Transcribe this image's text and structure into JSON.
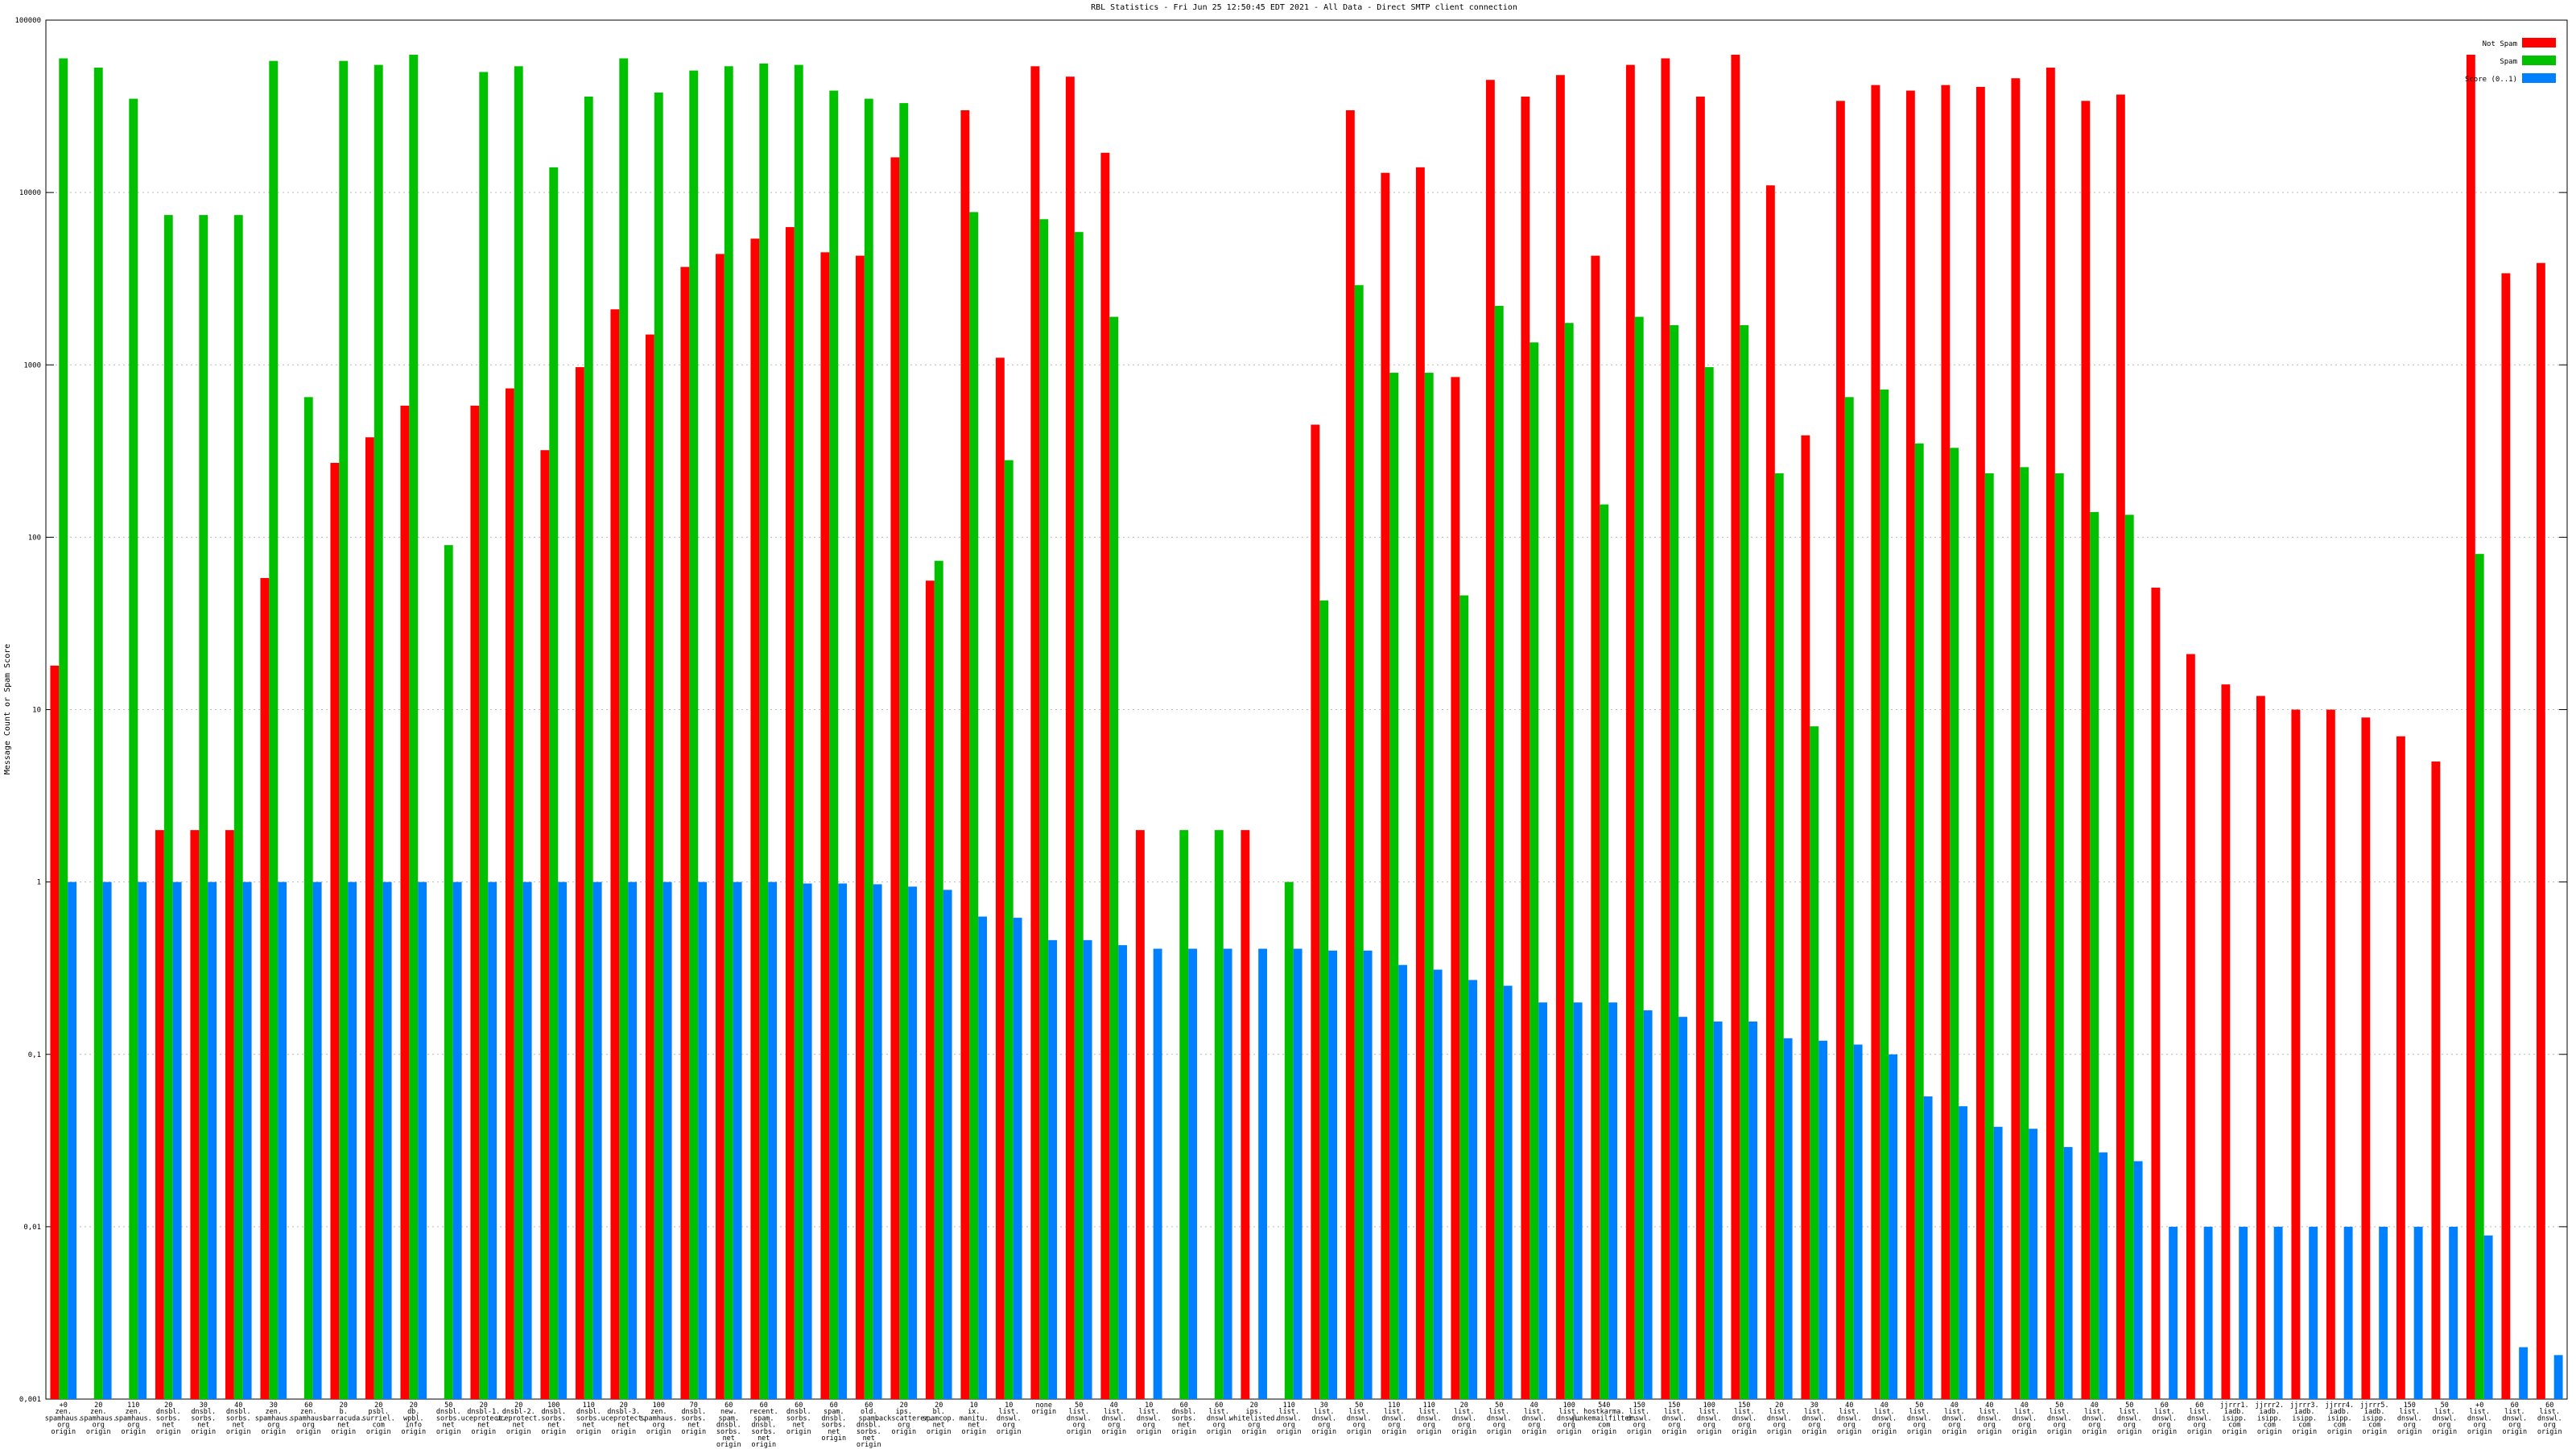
{
  "chart_data": {
    "type": "bar",
    "title": "RBL Statistics - Fri Jun 25 12:50:45 EDT 2021 - All Data - Direct SMTP client connection",
    "y_label": "Message Count or Spam Score",
    "log_scale": true,
    "grid": true,
    "legend": "top-right",
    "ylim": [
      0.001,
      100000
    ],
    "yticks": [
      {
        "value": 0.001,
        "label": "0,001"
      },
      {
        "value": 0.01,
        "label": "0,01"
      },
      {
        "value": 0.1,
        "label": "0,1"
      },
      1,
      10,
      100,
      1000,
      10000,
      100000
    ],
    "categories": [
      [
        "+0",
        "zen.",
        "spamhaus.",
        "org",
        "origin"
      ],
      [
        "20",
        "zen.",
        "spamhaus.",
        "org",
        "origin"
      ],
      [
        "110",
        "zen.",
        "spamhaus.",
        "org",
        "origin"
      ],
      [
        "20",
        "dnsbl.",
        "sorbs.",
        "net",
        "origin"
      ],
      [
        "30",
        "dnsbl.",
        "sorbs.",
        "net",
        "origin"
      ],
      [
        "40",
        "dnsbl.",
        "sorbs.",
        "net",
        "origin"
      ],
      [
        "30",
        "zen.",
        "spamhaus.",
        "org",
        "origin"
      ],
      [
        "60",
        "zen.",
        "spamhaus.",
        "org",
        "origin"
      ],
      [
        "20",
        "b.",
        "barracuda.",
        "net",
        "origin"
      ],
      [
        "20",
        "psbl.",
        "surriel.",
        "com",
        "origin"
      ],
      [
        "20",
        "db.",
        "wpbl.",
        "info",
        "origin"
      ],
      [
        "50",
        "dnsbl.",
        "sorbs.",
        "net",
        "origin"
      ],
      [
        "20",
        "dnsbl-1.",
        "uceprotect.",
        "net",
        "origin"
      ],
      [
        "20",
        "dnsbl-2.",
        "uceprotect.",
        "net",
        "origin"
      ],
      [
        "100",
        "dnsbl.",
        "sorbs.",
        "net",
        "origin"
      ],
      [
        "110",
        "dnsbl.",
        "sorbs.",
        "net",
        "origin"
      ],
      [
        "20",
        "dnsbl-3.",
        "uceprotect.",
        "net",
        "origin"
      ],
      [
        "100",
        "zen.",
        "spamhaus.",
        "org",
        "origin"
      ],
      [
        "70",
        "dnsbl.",
        "sorbs.",
        "net",
        "origin"
      ],
      [
        "60",
        "new.",
        "spam.",
        "dnsbl.",
        "sorbs.",
        "net",
        "origin"
      ],
      [
        "60",
        "recent.",
        "spam.",
        "dnsbl.",
        "sorbs.",
        "net",
        "origin"
      ],
      [
        "60",
        "dnsbl.",
        "sorbs.",
        "net",
        "origin"
      ],
      [
        "60",
        "spam.",
        "dnsbl.",
        "sorbs.",
        "net",
        "origin"
      ],
      [
        "60",
        "old.",
        "spam.",
        "dnsbl.",
        "sorbs.",
        "net",
        "origin"
      ],
      [
        "20",
        "ips.",
        "backscatterer.",
        "org",
        "origin"
      ],
      [
        "20",
        "bl.",
        "spamcop.",
        "net",
        "origin"
      ],
      [
        "10",
        "ix.",
        "manitu.",
        "net",
        "origin"
      ],
      [
        "10",
        "list.",
        "dnswl.",
        "org",
        "origin"
      ],
      [
        "none",
        "origin"
      ],
      [
        "50",
        "list.",
        "dnswl.",
        "org",
        "origin"
      ],
      [
        "40",
        "list.",
        "dnswl.",
        "org",
        "origin"
      ],
      [
        "10",
        "list.",
        "dnswl.",
        "org",
        "origin"
      ],
      [
        "60",
        "dnsbl.",
        "sorbs.",
        "net",
        "origin"
      ],
      [
        "60",
        "list.",
        "dnswl.",
        "org",
        "origin"
      ],
      [
        "20",
        "ips.",
        "whitelisted.",
        "org",
        "origin"
      ],
      [
        "110",
        "list.",
        "dnswl.",
        "org",
        "origin"
      ],
      [
        "30",
        "list.",
        "dnswl.",
        "org",
        "origin"
      ],
      [
        "50",
        "list.",
        "dnswl.",
        "org",
        "origin"
      ],
      [
        "110",
        "list.",
        "dnswl.",
        "org",
        "origin"
      ],
      [
        "110",
        "list.",
        "dnswl.",
        "org",
        "origin"
      ],
      [
        "20",
        "list.",
        "dnswl.",
        "org",
        "origin"
      ],
      [
        "50",
        "list.",
        "dnswl.",
        "org",
        "origin"
      ],
      [
        "40",
        "list.",
        "dnswl.",
        "org",
        "origin"
      ],
      [
        "100",
        "list.",
        "dnswl.",
        "org",
        "origin"
      ],
      [
        "540",
        "hostkarma.",
        "junkemailfilter.",
        "com",
        "origin"
      ],
      [
        "150",
        "list.",
        "dnswl.",
        "org",
        "origin"
      ],
      [
        "150",
        "list.",
        "dnswl.",
        "org",
        "origin"
      ],
      [
        "100",
        "list.",
        "dnswl.",
        "org",
        "origin"
      ],
      [
        "150",
        "list.",
        "dnswl.",
        "org",
        "origin"
      ],
      [
        "20",
        "list.",
        "dnswl.",
        "org",
        "origin"
      ],
      [
        "30",
        "list.",
        "dnswl.",
        "org",
        "origin"
      ],
      [
        "40",
        "list.",
        "dnswl.",
        "org",
        "origin"
      ],
      [
        "40",
        "list.",
        "dnswl.",
        "org",
        "origin"
      ],
      [
        "50",
        "list.",
        "dnswl.",
        "org",
        "origin"
      ],
      [
        "40",
        "list.",
        "dnswl.",
        "org",
        "origin"
      ],
      [
        "40",
        "list.",
        "dnswl.",
        "org",
        "origin"
      ],
      [
        "40",
        "list.",
        "dnswl.",
        "org",
        "origin"
      ],
      [
        "50",
        "list.",
        "dnswl.",
        "org",
        "origin"
      ],
      [
        "40",
        "list.",
        "dnswl.",
        "org",
        "origin"
      ],
      [
        "50",
        "list.",
        "dnswl.",
        "org",
        "origin"
      ],
      [
        "60",
        "list.",
        "dnswl.",
        "org",
        "origin"
      ],
      [
        "60",
        "list.",
        "dnswl.",
        "org",
        "origin"
      ],
      [
        "jjrrr1.",
        "iadb.",
        "isipp.",
        "com",
        "origin"
      ],
      [
        "jjrrr2.",
        "iadb.",
        "isipp.",
        "com",
        "origin"
      ],
      [
        "jjrrr3.",
        "iadb.",
        "isipp.",
        "com",
        "origin"
      ],
      [
        "jjrrr4.",
        "iadb.",
        "isipp.",
        "com",
        "origin"
      ],
      [
        "jjrrr5.",
        "iadb.",
        "isipp.",
        "com",
        "origin"
      ],
      [
        "150",
        "list.",
        "dnswl.",
        "org",
        "origin"
      ],
      [
        "50",
        "list.",
        "dnswl.",
        "org",
        "origin"
      ],
      [
        "+0",
        "list.",
        "dnswl.",
        "org",
        "origin"
      ],
      [
        "60",
        "list.",
        "dnswl.",
        "org",
        "origin"
      ],
      [
        "60",
        "list.",
        "dnswl.",
        "org",
        "origin"
      ]
    ],
    "series": [
      {
        "name": "Not Spam",
        "color": "#ff0000",
        "values": [
          18,
          null,
          null,
          2,
          2,
          2,
          58,
          null,
          270,
          380,
          580,
          null,
          580,
          730,
          320,
          970,
          2100,
          1500,
          3700,
          4400,
          5400,
          6300,
          4500,
          4300,
          16000,
          56,
          30000,
          1100,
          54000,
          47000,
          17000,
          2,
          null,
          null,
          2,
          null,
          450,
          30000,
          13000,
          14000,
          850,
          45000,
          36000,
          48000,
          4300,
          55000,
          60000,
          36000,
          63000,
          11000,
          390,
          34000,
          42000,
          39000,
          42000,
          41000,
          46000,
          53000,
          34000,
          37000,
          51,
          21,
          14,
          12,
          10,
          10,
          9,
          7,
          5,
          63000,
          3400,
          3900
        ]
      },
      {
        "name": "Spam",
        "color": "#00c000",
        "values": [
          60000,
          53000,
          35000,
          7400,
          7400,
          7400,
          58000,
          650,
          58000,
          55000,
          63000,
          90,
          50000,
          54000,
          14000,
          36000,
          60000,
          38000,
          51000,
          54000,
          56000,
          55000,
          39000,
          35000,
          33000,
          73,
          7700,
          280,
          7000,
          5900,
          1900,
          null,
          2,
          2,
          null,
          1,
          43,
          2900,
          900,
          900,
          46,
          2200,
          1350,
          1750,
          155,
          1900,
          1700,
          970,
          1700,
          235,
          8,
          650,
          720,
          350,
          330,
          235,
          255,
          235,
          140,
          135,
          null,
          null,
          null,
          null,
          null,
          null,
          null,
          null,
          null,
          80,
          null,
          null
        ]
      },
      {
        "name": "Score (0..1)",
        "color": "#0080ff",
        "values": [
          1,
          1,
          1,
          1,
          1,
          1,
          1,
          1,
          1,
          1,
          1,
          1,
          1,
          1,
          1,
          1,
          1,
          1,
          1,
          1,
          1,
          0.98,
          0.98,
          0.97,
          0.94,
          0.9,
          0.63,
          0.62,
          0.46,
          0.46,
          0.43,
          0.41,
          0.41,
          0.41,
          0.41,
          0.41,
          0.4,
          0.4,
          0.33,
          0.31,
          0.27,
          0.25,
          0.2,
          0.2,
          0.2,
          0.18,
          0.165,
          0.155,
          0.155,
          0.124,
          0.12,
          0.114,
          0.1,
          0.057,
          0.05,
          0.038,
          0.037,
          0.029,
          0.027,
          0.024,
          0.01,
          0.01,
          0.01,
          0.01,
          0.01,
          0.01,
          0.01,
          0.01,
          0.01,
          0.0089,
          0.002,
          0.0018
        ]
      }
    ]
  }
}
